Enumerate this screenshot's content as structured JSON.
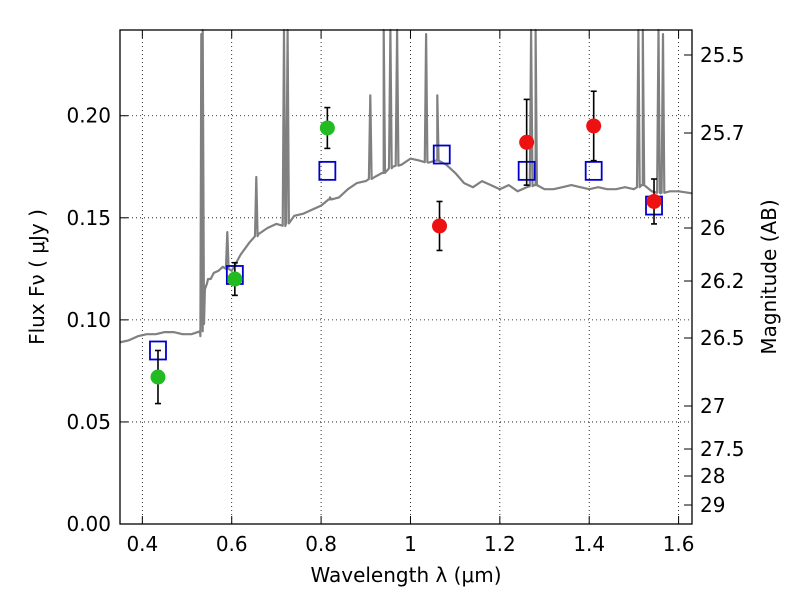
{
  "chart_data": {
    "type": "scatter",
    "xlabel": "Wavelength  λ (μm)",
    "ylabel": "Flux  Fν  ( μJy )",
    "ylabel_right": "Magnitude (AB)",
    "xlim": [
      0.35,
      1.63
    ],
    "ylim": [
      0.0,
      0.242
    ],
    "grid": true,
    "x_ticks": [
      {
        "value": 0.4,
        "label": "0.4"
      },
      {
        "value": 0.6,
        "label": "0.6"
      },
      {
        "value": 0.8,
        "label": "0.8"
      },
      {
        "value": 1.0,
        "label": "1"
      },
      {
        "value": 1.2,
        "label": "1.2"
      },
      {
        "value": 1.4,
        "label": "1.4"
      },
      {
        "value": 1.6,
        "label": "1.6"
      }
    ],
    "y_ticks": [
      {
        "value": 0.0,
        "label": "0.00"
      },
      {
        "value": 0.05,
        "label": "0.05"
      },
      {
        "value": 0.1,
        "label": "0.10"
      },
      {
        "value": 0.15,
        "label": "0.15"
      },
      {
        "value": 0.2,
        "label": "0.20"
      }
    ],
    "y_ticks_right": [
      {
        "value": 25.5,
        "label": "25.5"
      },
      {
        "value": 25.7,
        "label": "25.7"
      },
      {
        "value": 26.0,
        "label": "26"
      },
      {
        "value": 26.2,
        "label": "26.2"
      },
      {
        "value": 26.5,
        "label": "26.5"
      },
      {
        "value": 27.0,
        "label": "27"
      },
      {
        "value": 27.5,
        "label": "27.5"
      },
      {
        "value": 28.0,
        "label": "28"
      },
      {
        "value": 29.0,
        "label": "29"
      }
    ],
    "series": [
      {
        "kind": "spectrum",
        "color": "#808080",
        "x": [
          0.35,
          0.37,
          0.39,
          0.41,
          0.43,
          0.45,
          0.47,
          0.49,
          0.51,
          0.53,
          0.535,
          0.54,
          0.545,
          0.55,
          0.56,
          0.57,
          0.58,
          0.6,
          0.62,
          0.64,
          0.66,
          0.68,
          0.7,
          0.72,
          0.74,
          0.76,
          0.78,
          0.8,
          0.82,
          0.84,
          0.86,
          0.88,
          0.9,
          0.92,
          0.94,
          0.96,
          0.98,
          1.0,
          1.02,
          1.04,
          1.06,
          1.08,
          1.1,
          1.12,
          1.14,
          1.16,
          1.18,
          1.2,
          1.22,
          1.24,
          1.26,
          1.28,
          1.3,
          1.32,
          1.34,
          1.36,
          1.38,
          1.4,
          1.42,
          1.44,
          1.46,
          1.48,
          1.5,
          1.52,
          1.54,
          1.56,
          1.58,
          1.6,
          1.63
        ],
        "y": [
          0.089,
          0.09,
          0.092,
          0.093,
          0.093,
          0.094,
          0.094,
          0.093,
          0.093,
          0.092,
          0.098,
          0.115,
          0.118,
          0.12,
          0.123,
          0.124,
          0.126,
          0.124,
          0.132,
          0.138,
          0.142,
          0.145,
          0.147,
          0.146,
          0.151,
          0.152,
          0.154,
          0.156,
          0.159,
          0.16,
          0.164,
          0.167,
          0.168,
          0.17,
          0.172,
          0.175,
          0.176,
          0.179,
          0.178,
          0.177,
          0.178,
          0.176,
          0.172,
          0.167,
          0.165,
          0.168,
          0.166,
          0.164,
          0.166,
          0.163,
          0.165,
          0.166,
          0.164,
          0.164,
          0.165,
          0.166,
          0.165,
          0.164,
          0.165,
          0.164,
          0.164,
          0.165,
          0.164,
          0.166,
          0.163,
          0.162,
          0.163,
          0.163,
          0.162
        ]
      },
      {
        "kind": "model-squares",
        "color": "#0000cc",
        "x": [
          0.435,
          0.607,
          0.814,
          1.07,
          1.26,
          1.41,
          1.545
        ],
        "y": [
          0.085,
          0.122,
          0.173,
          0.181,
          0.173,
          0.173,
          0.156
        ]
      },
      {
        "kind": "observed-green",
        "color": "#22bb22",
        "x": [
          0.435,
          0.607,
          0.814
        ],
        "y": [
          0.072,
          0.12,
          0.194
        ],
        "yerr": [
          0.013,
          0.008,
          0.01
        ]
      },
      {
        "kind": "observed-red",
        "color": "#ee1111",
        "x": [
          1.065,
          1.26,
          1.41,
          1.545
        ],
        "y": [
          0.146,
          0.187,
          0.195,
          0.158
        ],
        "yerr": [
          0.012,
          0.021,
          0.017,
          0.011
        ]
      }
    ]
  }
}
